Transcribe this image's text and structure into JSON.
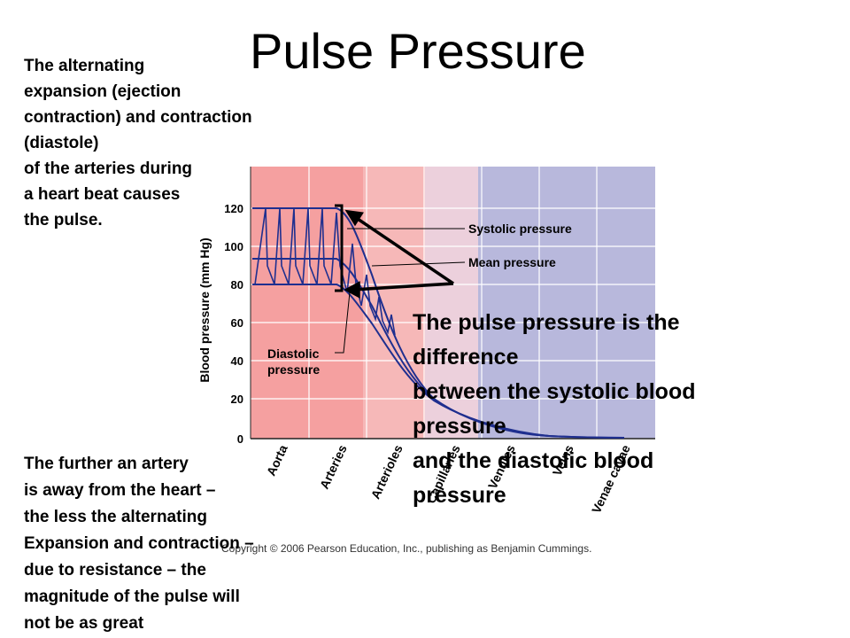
{
  "slide": {
    "title": "Pulse Pressure",
    "intro_lines": [
      "The alternating",
      "expansion (ejection",
      "contraction) and contraction",
      "(diastole)",
      "of the arteries during",
      "a heart beat causes",
      "the pulse."
    ],
    "further_lines": [
      "The further an artery",
      "is away from the heart –",
      "the less the alternating",
      "Expansion and contraction –",
      "due to resistance – the",
      "magnitude of the pulse will",
      "not be as great"
    ],
    "definition_lines": [
      "The pulse pressure is the",
      "difference",
      "between the systolic blood",
      "pressure",
      "and the diastolic blood",
      "pressure"
    ],
    "copyright": "Copyright © 2006 Pearson Education, Inc., publishing as Benjamin Cummings."
  },
  "figure": {
    "ylabel": "Blood pressure (mm Hg)",
    "y_ticks": [
      "120",
      "100",
      "80",
      "60",
      "40",
      "20",
      "0"
    ],
    "vessel_labels": [
      "Aorta",
      "Arteries",
      "Arterioles",
      "Capillaries",
      "Venules",
      "Veins",
      "Venae cavae"
    ],
    "annotation_systolic": "Systolic pressure",
    "annotation_mean": "Mean pressure",
    "annotation_diastolic": [
      "Diastolic",
      "pressure"
    ],
    "region_colors": {
      "arterial": "#f5a0a0",
      "capillary": "#f0d0d8",
      "venous": "#b8b8dc"
    },
    "curve_color": "#1f2f8f"
  }
}
